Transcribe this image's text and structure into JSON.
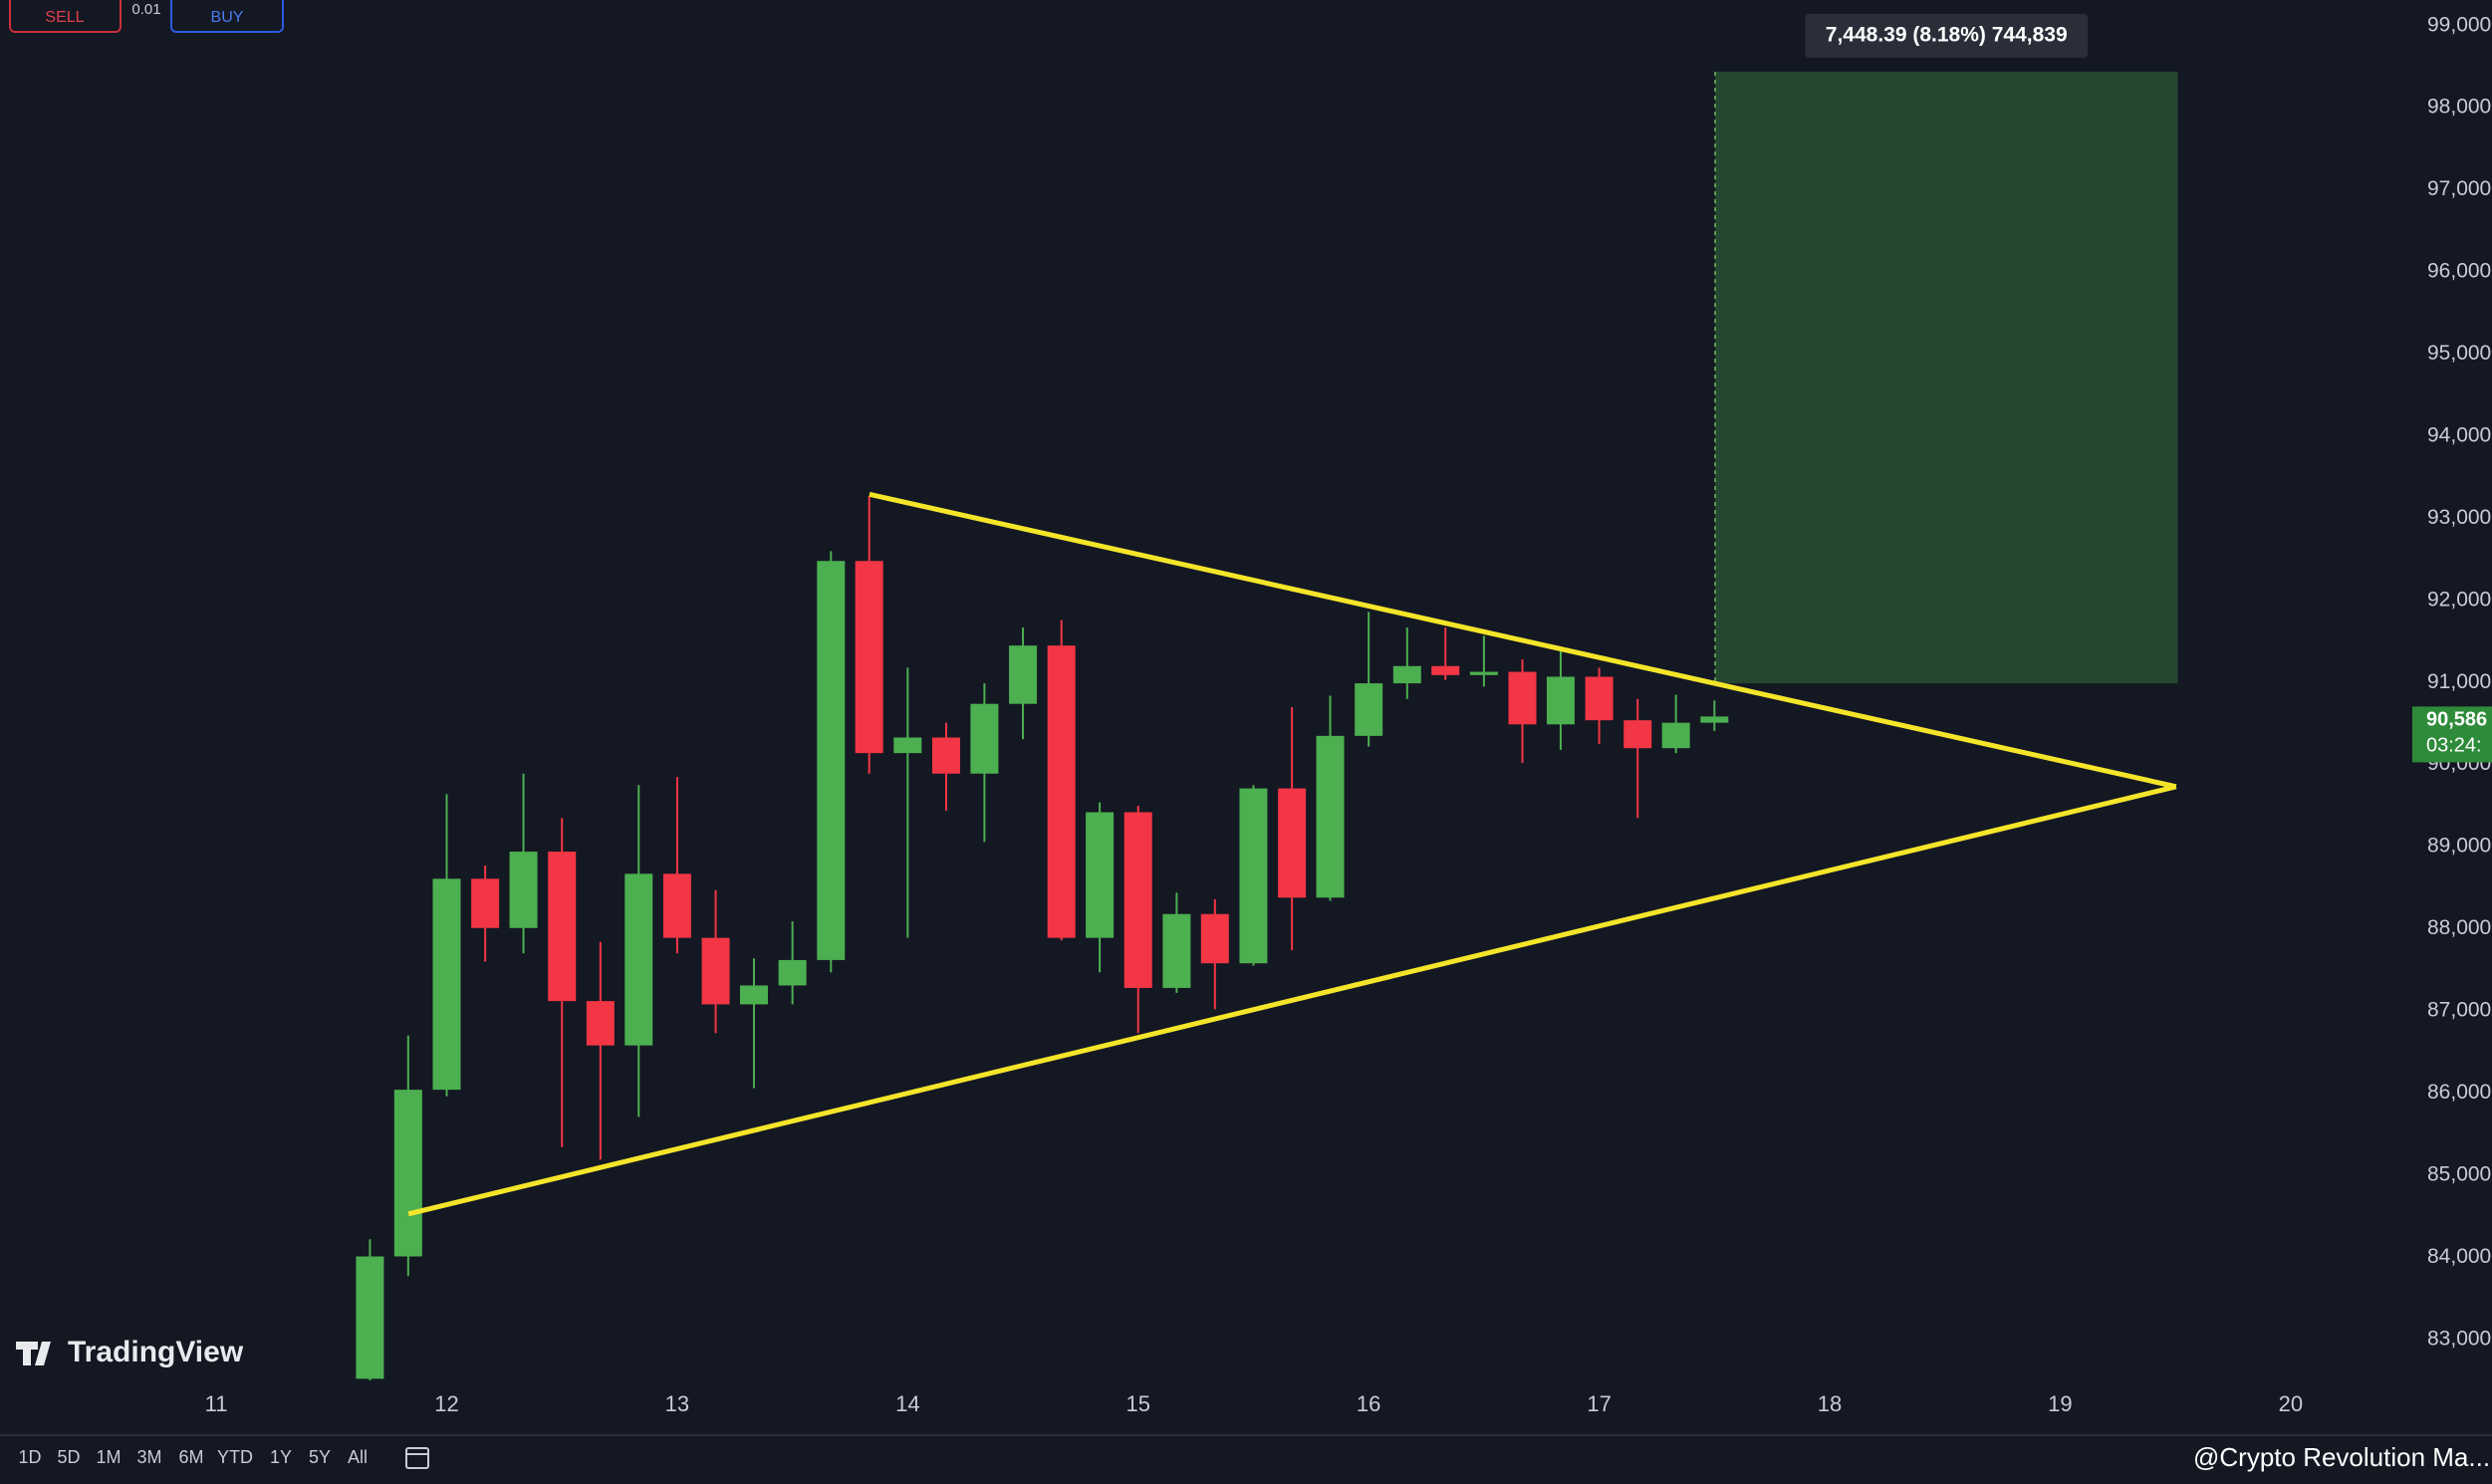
{
  "chart_data": {
    "type": "candlestick",
    "x": [
      11.667,
      11.833,
      12,
      12.167,
      12.333,
      12.5,
      12.667,
      12.833,
      13,
      13.167,
      13.333,
      13.5,
      13.667,
      13.833,
      14,
      14.167,
      14.333,
      14.5,
      14.667,
      14.833,
      15,
      15.167,
      15.333,
      15.5,
      15.667,
      15.833,
      16,
      16.167,
      16.333,
      16.5,
      16.667,
      16.833,
      17,
      17.167,
      17.333,
      17.5
    ],
    "open": [
      82520,
      84010,
      86040,
      88610,
      88010,
      88940,
      87120,
      86580,
      88670,
      87890,
      87080,
      87310,
      87620,
      92480,
      90140,
      90330,
      89890,
      90740,
      91450,
      87890,
      89420,
      87280,
      88180,
      87580,
      89710,
      88380,
      90350,
      90990,
      91200,
      91090,
      91130,
      90490,
      91070,
      90540,
      90200,
      90510
    ],
    "high": [
      84220,
      86700,
      89640,
      88770,
      89890,
      89350,
      87840,
      89750,
      89850,
      88470,
      87640,
      88090,
      92600,
      93270,
      91180,
      90510,
      90990,
      91670,
      91760,
      89540,
      89500,
      88440,
      88360,
      89750,
      90700,
      90840,
      91860,
      91670,
      91670,
      91570,
      91280,
      91380,
      91180,
      90800,
      90850,
      90780
    ],
    "low": [
      82500,
      83770,
      85960,
      87600,
      87700,
      85340,
      85190,
      85710,
      87700,
      86730,
      86060,
      87080,
      87470,
      89890,
      87890,
      89440,
      89060,
      90310,
      87860,
      87470,
      86730,
      87220,
      87020,
      87550,
      87740,
      88340,
      90220,
      90800,
      91030,
      90950,
      90020,
      90180,
      90250,
      89350,
      90140,
      90410
    ],
    "close": [
      84010,
      86040,
      88610,
      88010,
      88940,
      87120,
      86580,
      88670,
      87890,
      87080,
      87310,
      87620,
      92480,
      90140,
      90330,
      89890,
      90740,
      91450,
      87890,
      89420,
      87280,
      88180,
      87580,
      89710,
      88380,
      90350,
      90990,
      91200,
      91090,
      91130,
      90490,
      91070,
      90540,
      90200,
      90510,
      90586
    ],
    "up_color": "#4caf50",
    "down_color": "#f23645",
    "xlim": [
      10.062,
      20.476
    ],
    "xticks": [
      11,
      12,
      13,
      14,
      15,
      16,
      17,
      18,
      19,
      20
    ],
    "ylim": [
      82500,
      99300
    ],
    "yticks": [
      {
        "value": 83000,
        "label": "83,000"
      },
      {
        "value": 84000,
        "label": "84,000"
      },
      {
        "value": 85000,
        "label": "85,000"
      },
      {
        "value": 86000,
        "label": "86,000"
      },
      {
        "value": 87000,
        "label": "87,000"
      },
      {
        "value": 88000,
        "label": "88,000"
      },
      {
        "value": 89000,
        "label": "89,000"
      },
      {
        "value": 90000,
        "label": "90,000"
      },
      {
        "value": 91000,
        "label": "91,000"
      },
      {
        "value": 92000,
        "label": "92,000"
      },
      {
        "value": 93000,
        "label": "93,000"
      },
      {
        "value": 94000,
        "label": "94,000"
      },
      {
        "value": 95000,
        "label": "95,000"
      },
      {
        "value": 96000,
        "label": "96,000"
      },
      {
        "value": 97000,
        "label": "97,000"
      },
      {
        "value": 98000,
        "label": "98,000"
      },
      {
        "value": 99000,
        "label": "99,000"
      }
    ],
    "trendlines": [
      {
        "color": "#f5e52a",
        "x": [
          13.834,
          19.503
        ],
        "y": [
          93292,
          89732
        ]
      },
      {
        "color": "#f5e52a",
        "x": [
          11.834,
          19.503
        ],
        "y": [
          84528,
          89732
        ]
      }
    ],
    "measure": {
      "label": "7,448.39 (8.18%) 744,839",
      "x": [
        17.503,
        19.51
      ],
      "y": [
        90990,
        98438
      ],
      "color": "#26472f"
    },
    "last_price": {
      "value": 90586,
      "label": "90,586",
      "countdown": "03:24:",
      "color": "#2e8b3a"
    }
  },
  "toolbar": {
    "sell": "SELL",
    "buy": "BUY",
    "lot": "0.01",
    "ranges": [
      "1D",
      "5D",
      "1M",
      "3M",
      "6M",
      "YTD",
      "1Y",
      "5Y",
      "All"
    ]
  },
  "logo": "TradingView",
  "watermark": "@Crypto Revolution Ma..."
}
